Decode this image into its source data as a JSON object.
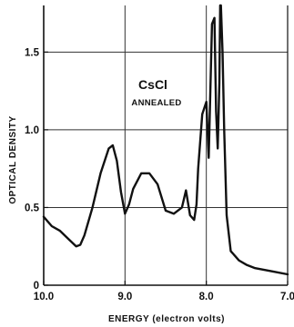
{
  "chart_data": {
    "type": "line",
    "title": "CsCl",
    "subtitle": "ANNEALED",
    "xlabel": "ENERGY (electron volts)",
    "ylabel": "OPTICAL DENSITY",
    "xlim": [
      10.0,
      7.0
    ],
    "ylim": [
      0,
      1.8
    ],
    "x_ticks": [
      10.0,
      9.0,
      8.0,
      7.0
    ],
    "x_tick_labels": [
      "10.0",
      "9.0",
      "8.0",
      "7.0"
    ],
    "y_ticks": [
      0,
      0.5,
      1.0,
      1.5
    ],
    "y_tick_labels": [
      "0",
      "0.5",
      "1.0",
      "1.5"
    ],
    "grid": true,
    "series": [
      {
        "x": [
          10.0,
          9.9,
          9.8,
          9.7,
          9.6,
          9.55,
          9.5,
          9.4,
          9.3,
          9.2,
          9.15,
          9.1,
          9.05,
          9.0,
          8.95,
          8.9,
          8.8,
          8.7,
          8.6,
          8.5,
          8.4,
          8.3,
          8.25,
          8.2,
          8.15,
          8.12,
          8.1,
          8.05,
          8.0,
          7.97,
          7.95,
          7.93,
          7.9,
          7.88,
          7.86,
          7.84,
          7.83,
          7.82,
          7.8,
          7.78,
          7.75,
          7.7,
          7.6,
          7.5,
          7.4,
          7.2,
          7.0
        ],
        "y": [
          0.44,
          0.38,
          0.35,
          0.3,
          0.25,
          0.26,
          0.32,
          0.5,
          0.72,
          0.88,
          0.9,
          0.8,
          0.6,
          0.46,
          0.52,
          0.62,
          0.72,
          0.72,
          0.65,
          0.48,
          0.46,
          0.5,
          0.61,
          0.45,
          0.42,
          0.52,
          0.75,
          1.1,
          1.18,
          0.82,
          1.25,
          1.68,
          1.72,
          1.12,
          0.88,
          1.3,
          1.8,
          1.8,
          1.5,
          1.0,
          0.45,
          0.22,
          0.16,
          0.13,
          0.11,
          0.09,
          0.07
        ]
      }
    ]
  }
}
